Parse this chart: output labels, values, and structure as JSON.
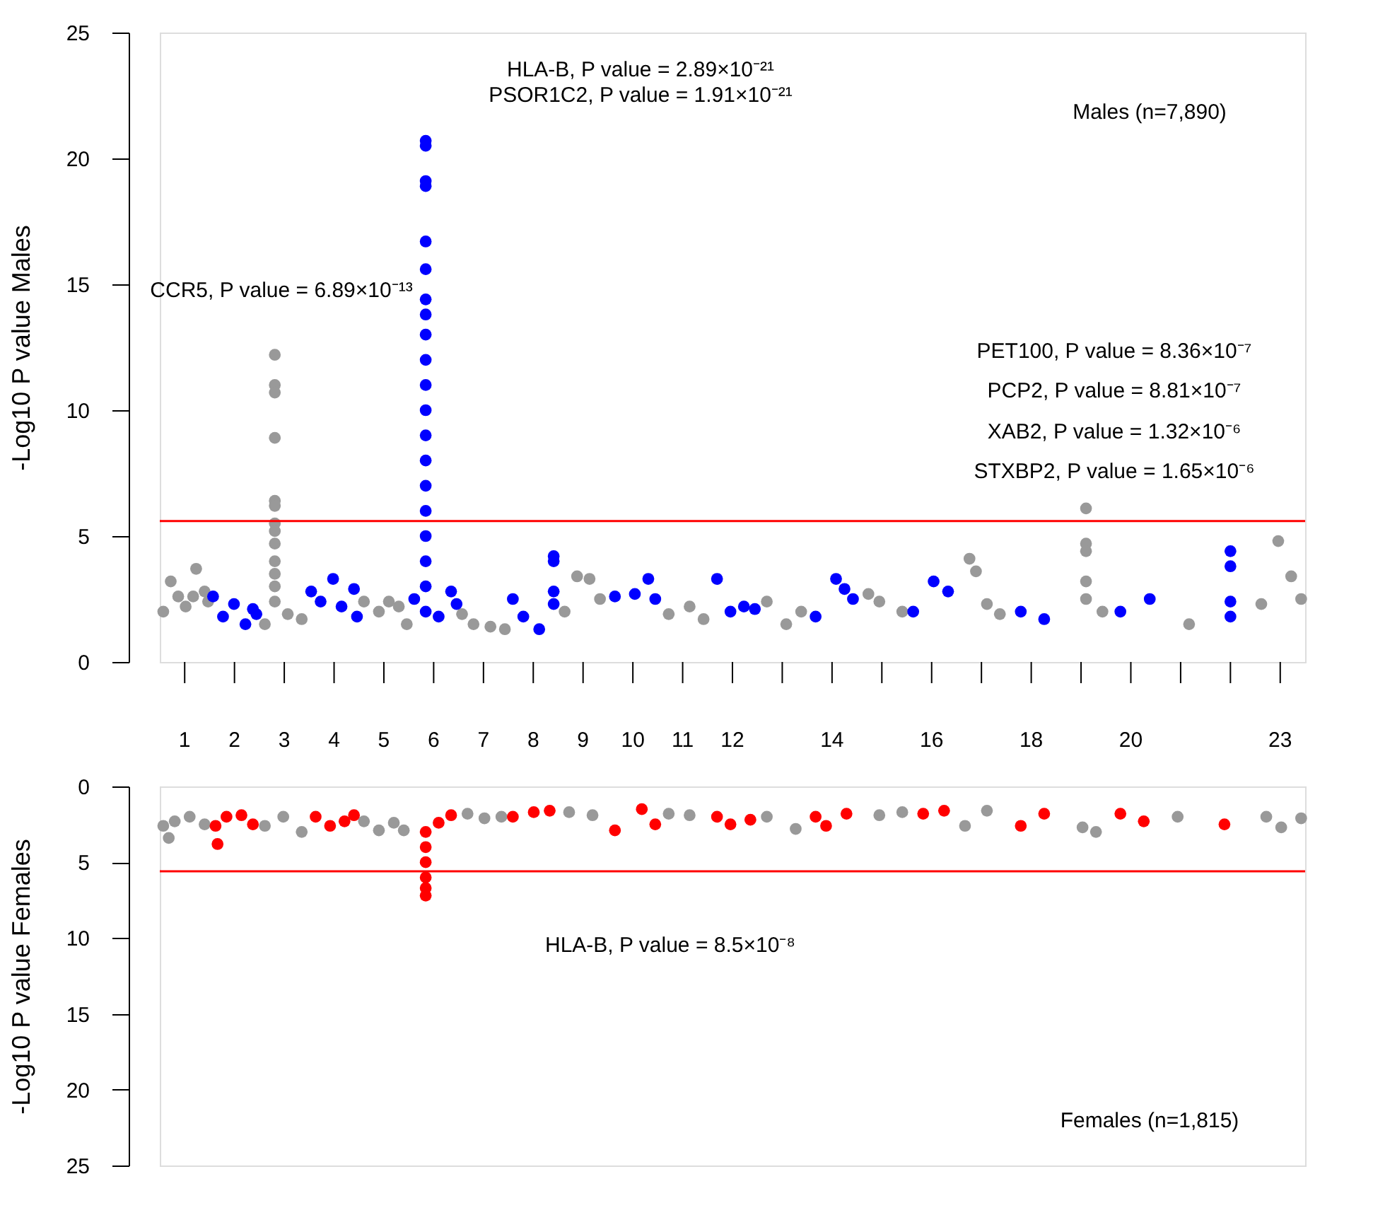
{
  "chart_data": [
    {
      "type": "scatter",
      "ylabel": "-Log10 P value Males",
      "xlim": [
        0.5,
        23.5
      ],
      "ylim": [
        0,
        25
      ],
      "yticks": [
        0,
        5,
        10,
        15,
        20,
        25
      ],
      "xticks": [
        1,
        2,
        3,
        4,
        5,
        6,
        7,
        8,
        9,
        10,
        11,
        12,
        {
          "value": 13,
          "label": null
        },
        14,
        {
          "value": 15,
          "label": null
        },
        16,
        {
          "value": 17,
          "label": null
        },
        18,
        {
          "value": 19,
          "label": null
        },
        20,
        {
          "value": 21,
          "label": null
        },
        {
          "value": 22,
          "label": null
        },
        23
      ],
      "grid": false,
      "marker": "circle",
      "series": [
        {
          "color": "#999999",
          "x": [
            0.57,
            0.72,
            0.87,
            1.02,
            1.17,
            1.23,
            1.4,
            1.47,
            2.81,
            2.81,
            2.81,
            2.81,
            2.81,
            2.81,
            2.81,
            2.81,
            2.81,
            2.81,
            2.81,
            2.81,
            2.81,
            2.61,
            3.07,
            3.35,
            4.6,
            4.9,
            5.1,
            5.3,
            5.46,
            6.57,
            6.8,
            7.14,
            7.43,
            8.63,
            8.88,
            9.13,
            9.34,
            10.72,
            11.14,
            11.42,
            12.69,
            13.08,
            13.38,
            14.73,
            14.95,
            15.41,
            16.76,
            16.89,
            17.11,
            17.37,
            19.1,
            19.1,
            19.1,
            19.1,
            19.1,
            19.43,
            21.17,
            22.62,
            22.96,
            23.22,
            23.42
          ],
          "values": [
            2.0,
            3.2,
            2.6,
            2.2,
            2.6,
            3.7,
            2.8,
            2.4,
            12.2,
            11.0,
            10.7,
            8.9,
            6.4,
            6.2,
            5.5,
            5.2,
            4.7,
            4.0,
            3.5,
            3.0,
            2.4,
            1.5,
            1.9,
            1.7,
            2.4,
            2.0,
            2.4,
            2.2,
            1.5,
            1.9,
            1.5,
            1.4,
            1.3,
            2.0,
            3.4,
            3.3,
            2.5,
            1.9,
            2.2,
            1.7,
            2.4,
            1.5,
            2.0,
            2.7,
            2.4,
            2.0,
            4.1,
            3.6,
            2.3,
            1.9,
            6.1,
            4.7,
            4.4,
            3.2,
            2.5,
            2.0,
            1.5,
            2.3,
            4.8,
            3.4,
            2.5
          ]
        },
        {
          "color": "#0000ff",
          "x": [
            1.57,
            1.77,
            1.99,
            2.22,
            2.37,
            2.44,
            3.54,
            3.73,
            3.98,
            4.15,
            4.4,
            4.46,
            5.84,
            5.84,
            5.84,
            5.84,
            5.84,
            5.84,
            5.84,
            5.84,
            5.84,
            5.84,
            5.84,
            5.84,
            5.84,
            5.84,
            5.84,
            5.84,
            5.84,
            5.84,
            5.84,
            5.84,
            5.61,
            6.1,
            6.35,
            6.46,
            7.59,
            7.8,
            8.12,
            8.41,
            8.41,
            8.41,
            8.41,
            9.64,
            10.04,
            10.31,
            10.45,
            11.69,
            11.96,
            12.23,
            12.45,
            13.67,
            14.08,
            14.25,
            14.42,
            15.63,
            16.04,
            16.33,
            17.79,
            18.26,
            19.79,
            20.38,
            22.0,
            22.0,
            22.0,
            22.0
          ],
          "values": [
            2.6,
            1.8,
            2.3,
            1.5,
            2.1,
            1.9,
            2.8,
            2.4,
            3.3,
            2.2,
            2.9,
            1.8,
            20.7,
            20.5,
            19.1,
            18.9,
            16.7,
            15.6,
            14.4,
            13.8,
            13.0,
            12.0,
            11.0,
            10.0,
            9.0,
            8.0,
            7.0,
            6.0,
            5.0,
            4.0,
            3.0,
            2.0,
            2.5,
            1.8,
            2.8,
            2.3,
            2.5,
            1.8,
            1.3,
            4.2,
            4.0,
            2.8,
            2.3,
            2.6,
            2.7,
            3.3,
            2.5,
            3.3,
            2.0,
            2.2,
            2.1,
            1.8,
            3.3,
            2.9,
            2.5,
            2.0,
            3.2,
            2.8,
            2.0,
            1.7,
            2.0,
            2.5,
            4.4,
            3.8,
            2.4,
            1.8
          ]
        }
      ],
      "ref_lines": [
        {
          "axis": "y",
          "value": 5.6,
          "color": "#ff0000"
        }
      ],
      "annotations": [
        "HLA-B, P value = 2.89×10⁻²¹",
        "PSOR1C2, P value = 1.91×10⁻²¹",
        "CCR5, P value = 6.89×10⁻¹³",
        "Males (n=7,890)",
        "PET100, P value = 8.36×10⁻⁷",
        "PCP2, P value = 8.81×10⁻⁷",
        "XAB2, P value = 1.32×10⁻⁶",
        "STXBP2, P value = 1.65×10⁻⁶"
      ]
    },
    {
      "type": "scatter",
      "ylabel": "-Log10 P value Females",
      "xlim": [
        0.5,
        23.5
      ],
      "ylim": [
        25,
        0
      ],
      "yticks": [
        0,
        5,
        10,
        15,
        20,
        25
      ],
      "tick_labels": "y",
      "grid": false,
      "marker": "circle",
      "series": [
        {
          "color": "#999999",
          "x": [
            0.57,
            0.68,
            0.8,
            1.1,
            1.4,
            2.61,
            2.98,
            3.35,
            4.6,
            4.9,
            5.2,
            5.4,
            6.68,
            7.02,
            7.36,
            8.72,
            9.19,
            10.72,
            11.14,
            12.69,
            13.27,
            14.95,
            15.41,
            16.67,
            17.11,
            19.03,
            19.3,
            20.94,
            22.72,
            23.02,
            23.42
          ],
          "values": [
            2.6,
            3.4,
            2.3,
            2.0,
            2.5,
            2.6,
            2.0,
            3.0,
            2.3,
            2.9,
            2.4,
            2.9,
            1.8,
            2.1,
            2.0,
            1.7,
            1.9,
            1.8,
            1.9,
            2.0,
            2.8,
            1.9,
            1.7,
            2.6,
            1.6,
            2.7,
            3.0,
            2.0,
            2.0,
            2.7,
            2.1
          ]
        },
        {
          "color": "#ff0000",
          "x": [
            1.62,
            1.66,
            1.84,
            2.14,
            2.37,
            3.63,
            3.92,
            4.21,
            4.4,
            5.84,
            5.84,
            5.84,
            5.84,
            5.84,
            5.84,
            6.1,
            6.35,
            7.59,
            8.01,
            8.33,
            9.64,
            10.18,
            10.45,
            11.69,
            11.96,
            12.36,
            13.67,
            13.88,
            14.29,
            15.83,
            16.25,
            17.79,
            18.26,
            19.79,
            20.26,
            21.88
          ],
          "values": [
            2.6,
            3.8,
            2.0,
            1.9,
            2.5,
            2.0,
            2.6,
            2.3,
            1.9,
            7.2,
            6.7,
            6.0,
            5.0,
            4.0,
            3.0,
            2.4,
            1.9,
            2.0,
            1.7,
            1.6,
            2.9,
            1.5,
            2.5,
            2.0,
            2.5,
            2.2,
            2.0,
            2.6,
            1.8,
            1.8,
            1.6,
            2.6,
            1.8,
            1.8,
            2.3,
            2.5
          ]
        }
      ],
      "ref_lines": [
        {
          "axis": "y",
          "value": 5.6,
          "color": "#ff0000"
        }
      ],
      "annotations": [
        "HLA-B, P value = 8.5×10⁻⁸",
        "Females (n=1,815)"
      ]
    }
  ]
}
